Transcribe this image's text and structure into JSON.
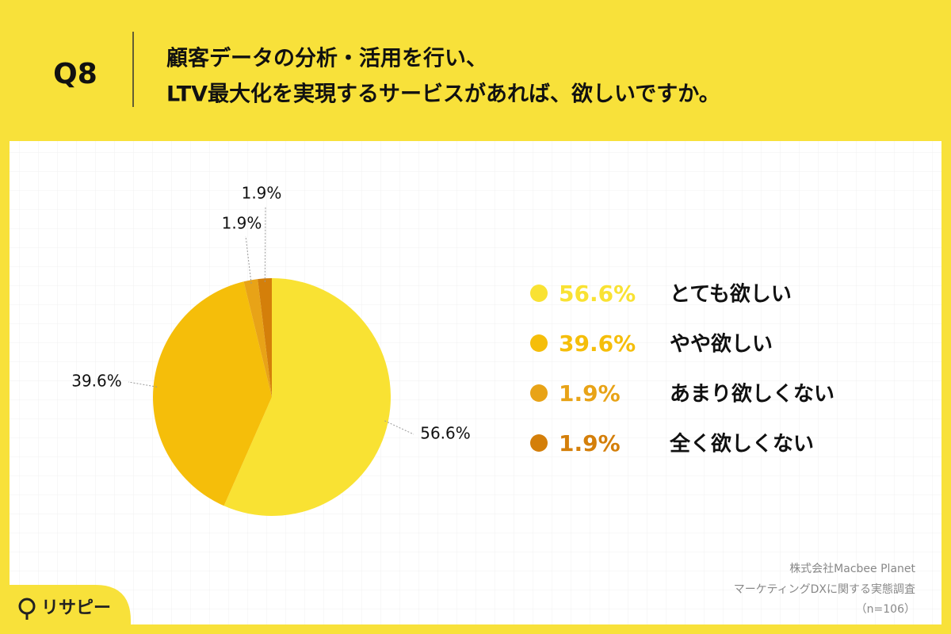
{
  "chart_data": {
    "type": "pie",
    "question": "Q8",
    "title": [
      "顧客データの分析・活用を行い、",
      "LTV最大化を実現するサービスがあれば、欲しいですか。"
    ],
    "categories": [
      "とても欲しい",
      "やや欲しい",
      "あまり欲しくない",
      "全く欲しくない"
    ],
    "values": [
      56.6,
      39.6,
      1.9,
      1.9
    ],
    "value_labels": [
      "56.6%",
      "39.6%",
      "1.9%",
      "1.9%"
    ],
    "colors": [
      "#f9e233",
      "#f5be0a",
      "#e8a317",
      "#d47f0a"
    ],
    "source": [
      "株式会社Macbee Planet",
      "マーケティングDXに関する実態調査",
      "（n=106）"
    ],
    "logo": "リサピー"
  }
}
